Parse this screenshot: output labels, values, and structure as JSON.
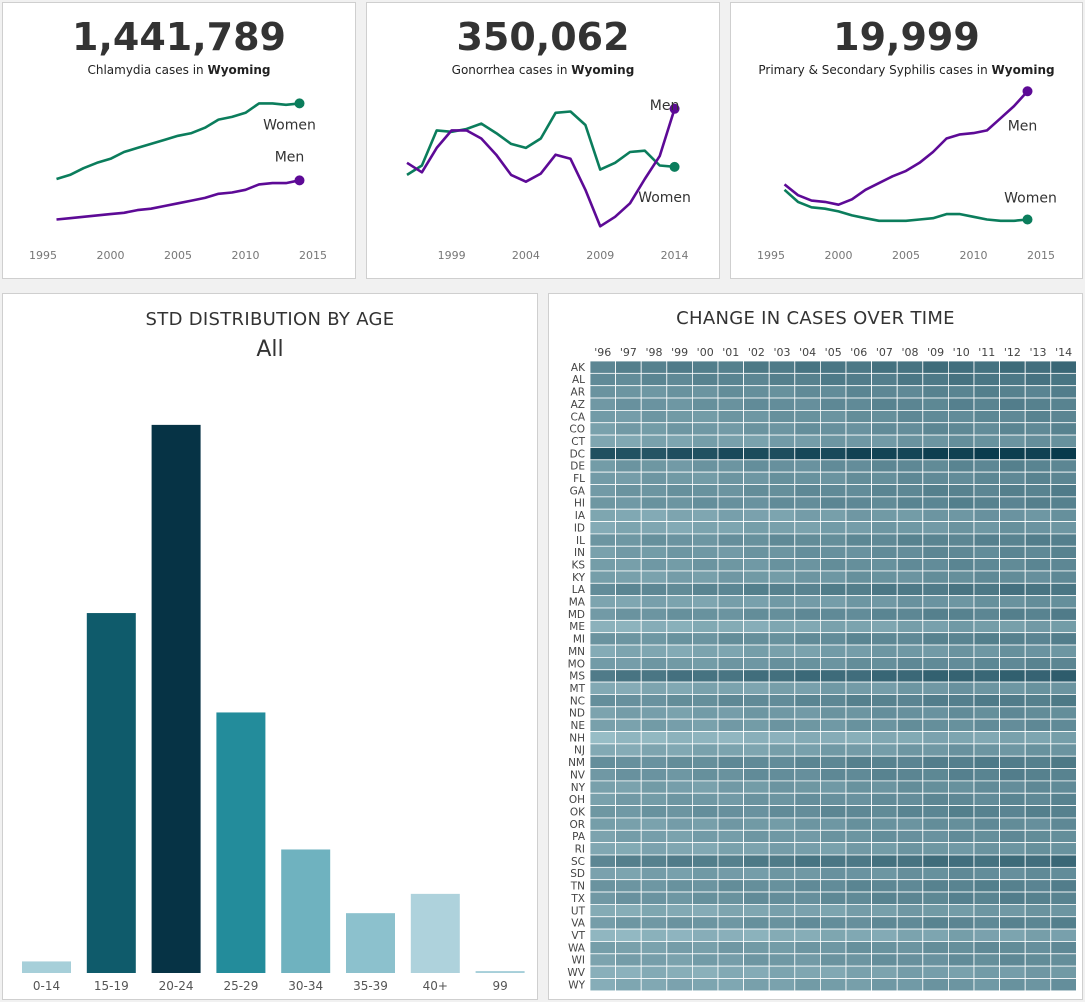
{
  "kpis": [
    {
      "value": "1,441,789",
      "label_prefix": "Chlamydia cases in ",
      "state": "Wyoming"
    },
    {
      "value": "350,062",
      "label_prefix": "Gonorrhea cases in ",
      "state": "Wyoming"
    },
    {
      "value": "19,999",
      "label_prefix": "Primary & Secondary Syphilis cases in ",
      "state": "Wyoming"
    }
  ],
  "colors": {
    "women": "#0b7d5c",
    "men": "#5d0a96",
    "heat_low": "#b1d4dc",
    "heat_high": "#06384a",
    "grid": "#ffffff"
  },
  "chart_data": [
    {
      "type": "line",
      "title": "Chlamydia cases in Wyoming",
      "xlim": [
        1995,
        2015
      ],
      "xticks": [
        "1995",
        "2000",
        "2005",
        "2010",
        "2015"
      ],
      "ylim": [
        0,
        100
      ],
      "series": [
        {
          "name": "Women",
          "x": [
            1996,
            1997,
            1998,
            1999,
            2000,
            2001,
            2002,
            2003,
            2004,
            2005,
            2006,
            2007,
            2008,
            2009,
            2010,
            2011,
            2012,
            2013,
            2014
          ],
          "values": [
            40,
            43,
            48,
            52,
            55,
            60,
            63,
            66,
            69,
            72,
            74,
            78,
            84,
            86,
            89,
            96,
            96,
            95,
            96
          ]
        },
        {
          "name": "Men",
          "x": [
            1996,
            1997,
            1998,
            1999,
            2000,
            2001,
            2002,
            2003,
            2004,
            2005,
            2006,
            2007,
            2008,
            2009,
            2010,
            2011,
            2012,
            2013,
            2014
          ],
          "values": [
            10,
            11,
            12,
            13,
            14,
            15,
            17,
            18,
            20,
            22,
            24,
            26,
            29,
            30,
            32,
            36,
            37,
            37,
            39
          ]
        }
      ]
    },
    {
      "type": "line",
      "title": "Gonorrhea cases in Wyoming",
      "xlim": [
        1996,
        2014.5
      ],
      "xticks": [
        "1999",
        "2004",
        "2009",
        "2014"
      ],
      "ylim": [
        0,
        100
      ],
      "series": [
        {
          "name": "Women",
          "x": [
            1996,
            1997,
            1998,
            1999,
            2000,
            2001,
            2002,
            2003,
            2004,
            2005,
            2006,
            2007,
            2008,
            2009,
            2010,
            2011,
            2012,
            2013,
            2014
          ],
          "values": [
            43,
            50,
            76,
            75,
            77,
            81,
            74,
            66,
            63,
            70,
            89,
            90,
            80,
            47,
            52,
            60,
            61,
            50,
            49
          ]
        },
        {
          "name": "Men",
          "x": [
            1996,
            1997,
            1998,
            1999,
            2000,
            2001,
            2002,
            2003,
            2004,
            2005,
            2006,
            2007,
            2008,
            2009,
            2010,
            2011,
            2012,
            2013,
            2014
          ],
          "values": [
            52,
            45,
            63,
            76,
            76,
            70,
            58,
            43,
            38,
            44,
            58,
            55,
            32,
            5,
            12,
            22,
            40,
            57,
            92
          ]
        }
      ]
    },
    {
      "type": "line",
      "title": "Primary & Secondary Syphilis cases in Wyoming",
      "xlim": [
        1995,
        2015
      ],
      "xticks": [
        "1995",
        "2000",
        "2005",
        "2010",
        "2015"
      ],
      "ylim": [
        0,
        100
      ],
      "series": [
        {
          "name": "Men",
          "x": [
            1996,
            1997,
            1998,
            1999,
            2000,
            2001,
            2002,
            2003,
            2004,
            2005,
            2006,
            2007,
            2008,
            2009,
            2010,
            2011,
            2012,
            2013,
            2014
          ],
          "values": [
            36,
            28,
            24,
            23,
            21,
            25,
            32,
            37,
            42,
            46,
            52,
            60,
            70,
            73,
            74,
            76,
            85,
            94,
            105
          ]
        },
        {
          "name": "Women",
          "x": [
            1996,
            1997,
            1998,
            1999,
            2000,
            2001,
            2002,
            2003,
            2004,
            2005,
            2006,
            2007,
            2008,
            2009,
            2010,
            2011,
            2012,
            2013,
            2014
          ],
          "values": [
            32,
            23,
            19,
            18,
            16,
            13,
            11,
            9,
            9,
            9,
            10,
            11,
            14,
            14,
            12,
            10,
            9,
            9,
            10
          ]
        }
      ]
    },
    {
      "type": "bar",
      "title": "STD DISTRIBUTION BY AGE",
      "filter": "All",
      "categories": [
        "0-14",
        "15-19",
        "20-24",
        "25-29",
        "30-34",
        "35-39",
        "40+",
        "99"
      ],
      "values": [
        12,
        373,
        568,
        270,
        128,
        62,
        82,
        2
      ],
      "ylim": [
        0,
        600
      ],
      "colors": [
        "#a6cfd9",
        "#0f5b6b",
        "#063345",
        "#238c9b",
        "#6fb2bf",
        "#8cc1cd",
        "#aed2dc",
        "#a6cfd9"
      ]
    },
    {
      "type": "heatmap",
      "title": "CHANGE IN CASES OVER TIME",
      "columns": [
        "'96",
        "'97",
        "'98",
        "'99",
        "'00",
        "'01",
        "'02",
        "'03",
        "'04",
        "'05",
        "'06",
        "'07",
        "'08",
        "'09",
        "'10",
        "'11",
        "'12",
        "'13",
        "'14"
      ],
      "rows": [
        "AK",
        "AL",
        "AR",
        "AZ",
        "CA",
        "CO",
        "CT",
        "DC",
        "DE",
        "FL",
        "GA",
        "HI",
        "IA",
        "ID",
        "IL",
        "IN",
        "KS",
        "KY",
        "LA",
        "MA",
        "MD",
        "ME",
        "MI",
        "MN",
        "MO",
        "MS",
        "MT",
        "NC",
        "ND",
        "NE",
        "NH",
        "NJ",
        "NM",
        "NV",
        "NY",
        "OH",
        "OK",
        "OR",
        "PA",
        "RI",
        "SC",
        "SD",
        "TN",
        "TX",
        "UT",
        "VA",
        "VT",
        "WA",
        "WI",
        "WV",
        "WY"
      ],
      "row_intensity": [
        0.55,
        0.5,
        0.42,
        0.42,
        0.38,
        0.38,
        0.32,
        0.85,
        0.4,
        0.38,
        0.42,
        0.42,
        0.3,
        0.3,
        0.42,
        0.38,
        0.38,
        0.35,
        0.5,
        0.32,
        0.42,
        0.25,
        0.42,
        0.3,
        0.38,
        0.62,
        0.3,
        0.45,
        0.35,
        0.35,
        0.2,
        0.3,
        0.45,
        0.42,
        0.35,
        0.38,
        0.42,
        0.35,
        0.35,
        0.3,
        0.55,
        0.35,
        0.42,
        0.42,
        0.28,
        0.4,
        0.22,
        0.35,
        0.35,
        0.25,
        0.3
      ],
      "col_trend": [
        0,
        0.01,
        0.02,
        0.02,
        0.03,
        0.04,
        0.05,
        0.06,
        0.07,
        0.08,
        0.09,
        0.1,
        0.11,
        0.12,
        0.13,
        0.13,
        0.14,
        0.14,
        0.15
      ]
    }
  ]
}
